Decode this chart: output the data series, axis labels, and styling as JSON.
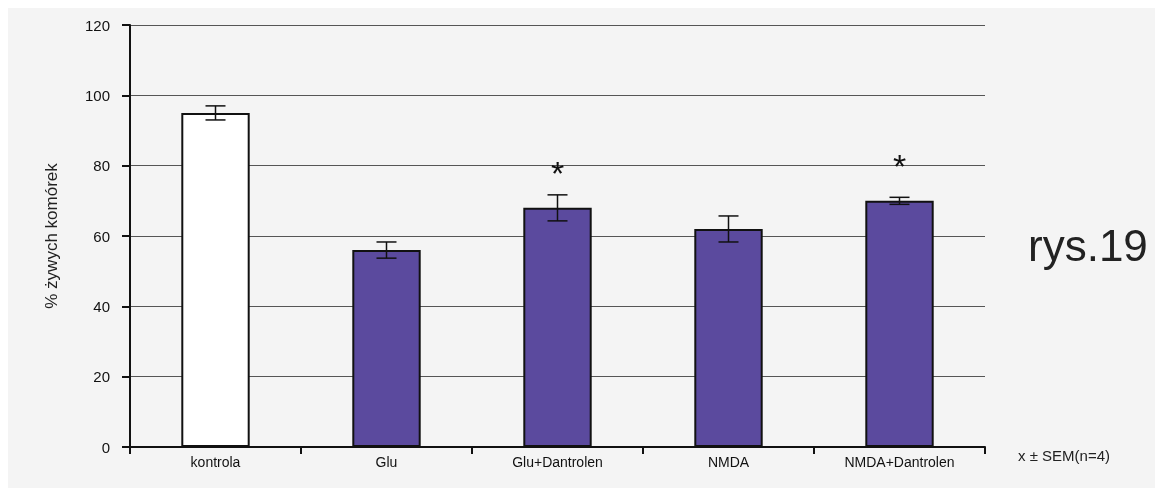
{
  "chart_data": {
    "type": "bar",
    "ylabel": "% żywych komórek",
    "categories": [
      "kontrola",
      "Glu",
      "Glu+Dantrolen",
      "NMDA",
      "NMDA+Dantrolen"
    ],
    "values": [
      95,
      56,
      68,
      62,
      70
    ],
    "colors": [
      "#ffffff",
      "#5b4a9e",
      "#5b4a9e",
      "#5b4a9e",
      "#5b4a9e"
    ],
    "errors": [
      2,
      2.3,
      3.7,
      3.7,
      1
    ],
    "ylim": [
      0,
      120
    ],
    "yticks": [
      0,
      20,
      40,
      60,
      80,
      100,
      120
    ],
    "grid": "y",
    "annotations": [
      {
        "text": "*",
        "x": "Glu+Dantrolen",
        "y": 68
      },
      {
        "text": "*",
        "x": "NMDA+Dantrolen",
        "y": 70
      },
      "x ± SEM(n=4)",
      "rys.19"
    ]
  }
}
